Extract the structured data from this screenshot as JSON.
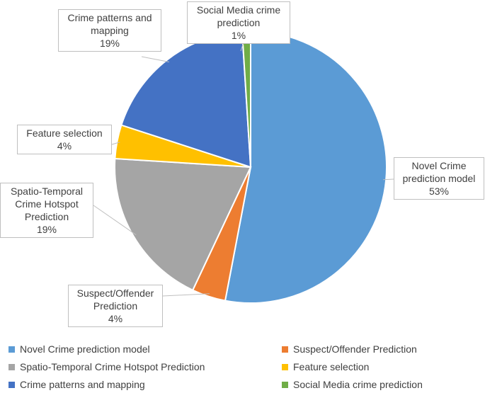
{
  "chart_data": {
    "type": "pie",
    "title": "",
    "categories": [
      "Novel Crime prediction model",
      "Suspect/Offender Prediction",
      "Spatio-Temporal Crime Hotspot Prediction",
      "Feature selection",
      "Crime patterns and mapping",
      "Social Media crime prediction"
    ],
    "values": [
      53,
      4,
      19,
      4,
      19,
      1
    ],
    "colors": [
      "#5b9bd5",
      "#ed7d31",
      "#a5a5a5",
      "#ffc000",
      "#4472c4",
      "#70ad47"
    ],
    "data_labels": [
      {
        "name": "Novel Crime\nprediction model",
        "value": "53%"
      },
      {
        "name": "Suspect/Offender\nPrediction",
        "value": "4%"
      },
      {
        "name": "Spatio-Temporal\nCrime Hotspot\nPrediction",
        "value": "19%"
      },
      {
        "name": "Feature selection",
        "value": "4%"
      },
      {
        "name": "Crime patterns and\nmapping",
        "value": "19%"
      },
      {
        "name": "Social Media crime\nprediction",
        "value": "1%"
      }
    ],
    "legend_position": "bottom"
  }
}
